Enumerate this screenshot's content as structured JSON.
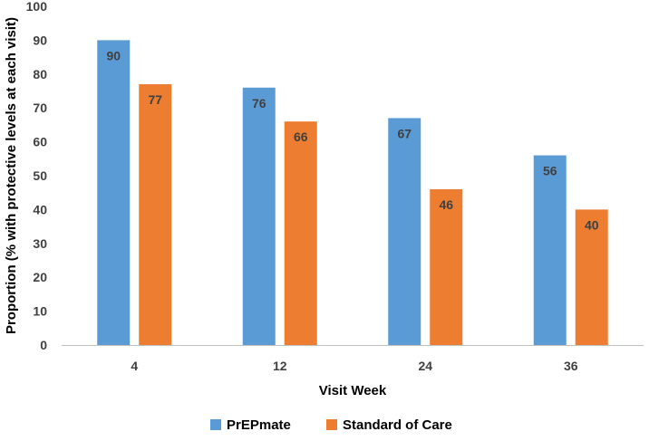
{
  "chart_data": {
    "type": "bar",
    "categories": [
      "4",
      "12",
      "24",
      "36"
    ],
    "series": [
      {
        "name": "PrEPmate",
        "values": [
          90,
          76,
          67,
          56
        ],
        "color": "#5B9BD5"
      },
      {
        "name": "Standard of Care",
        "values": [
          77,
          66,
          46,
          40
        ],
        "color": "#ED7D31"
      }
    ],
    "title": "",
    "xlabel": "Visit Week",
    "ylabel": "Proportion (% with protective levels at each visit)",
    "ylim": [
      0,
      100
    ],
    "yticks": [
      "0",
      "10",
      "20",
      "30",
      "40",
      "50",
      "60",
      "70",
      "80",
      "90",
      "100"
    ],
    "data_labels": true,
    "grid": false,
    "legend": "bottom-center"
  }
}
